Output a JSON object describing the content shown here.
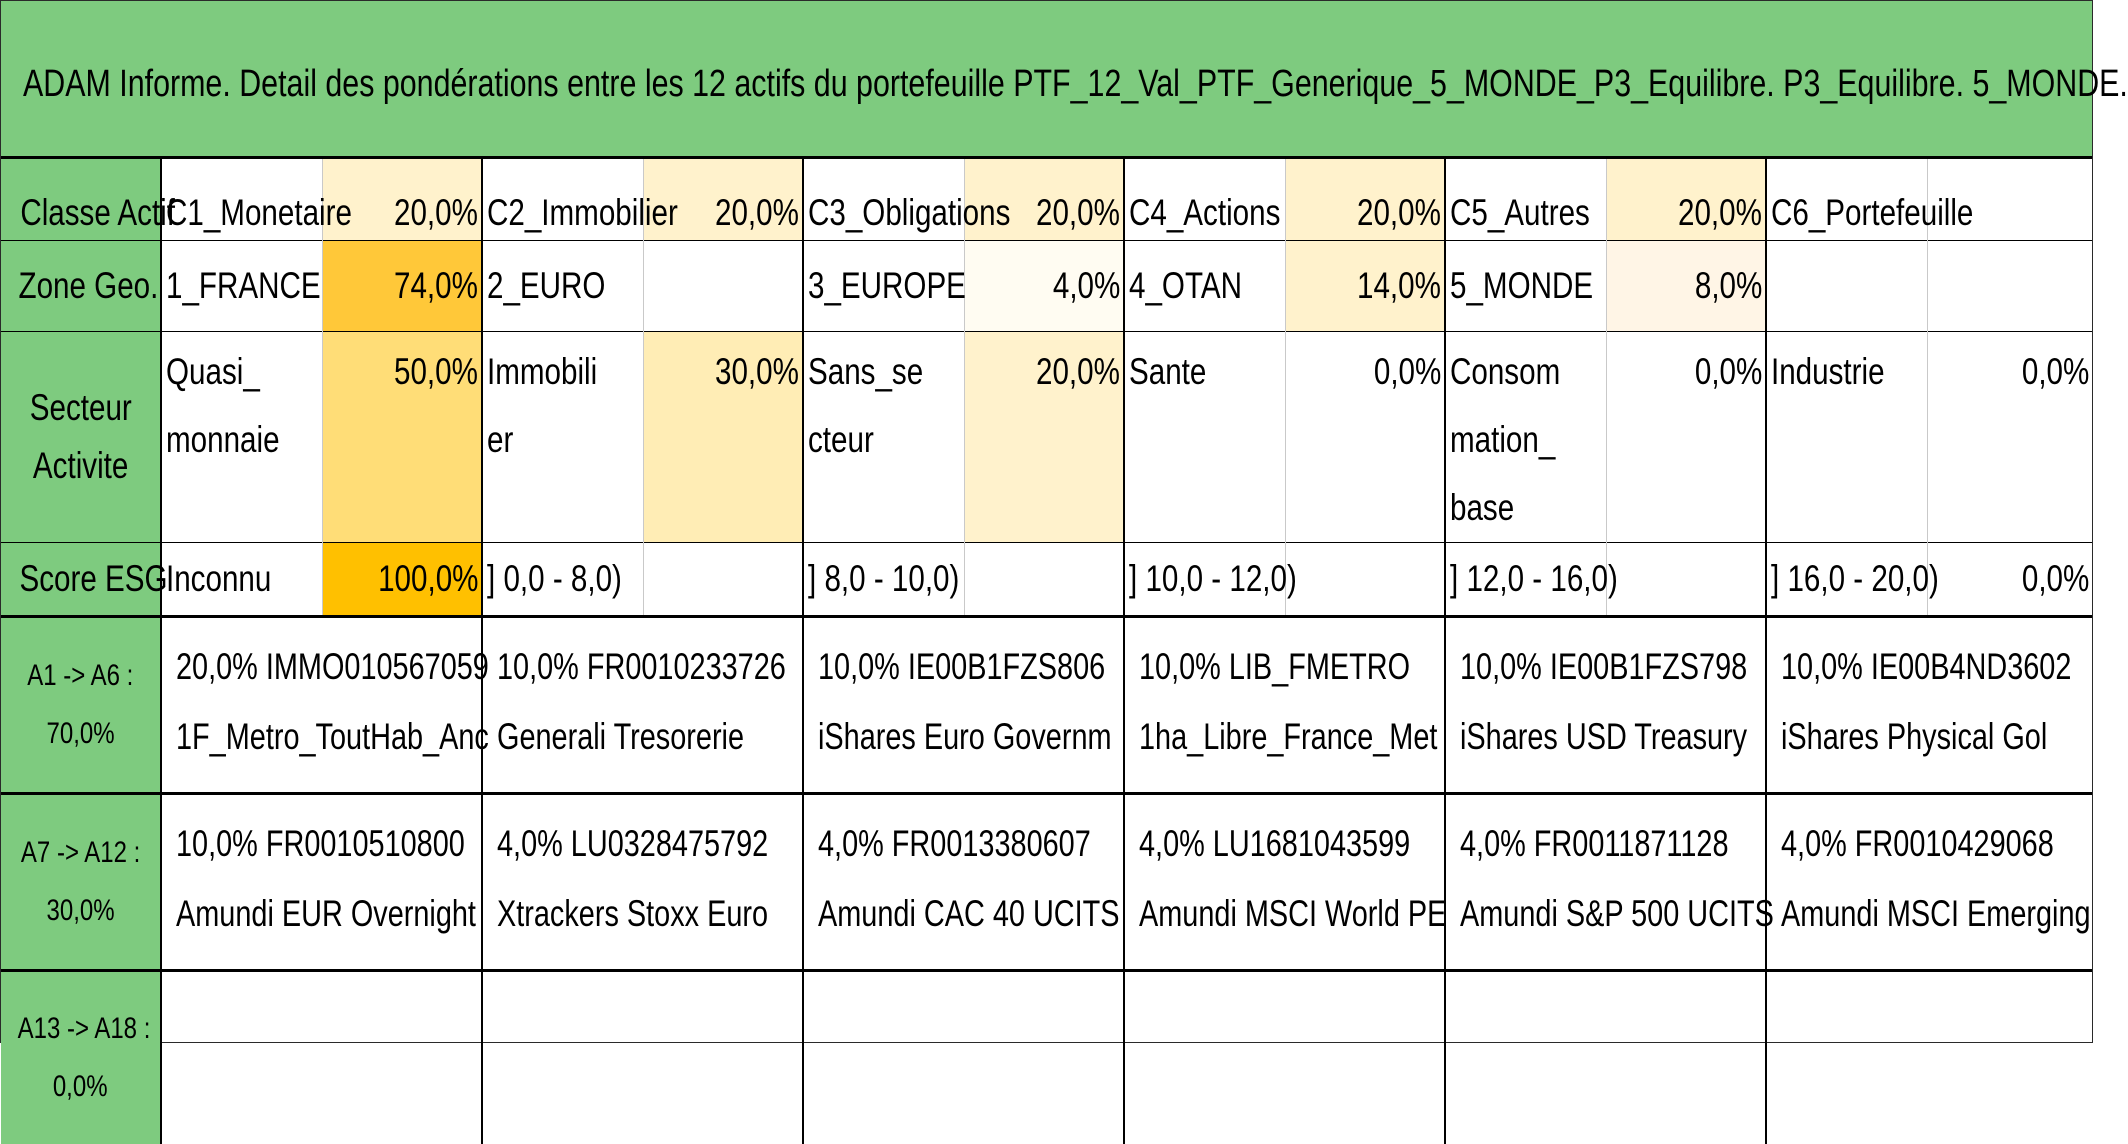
{
  "title": "ADAM Informe. Detail des pondérations entre les 12 actifs du portefeuille PTF_12_Val_PTF_Generique_5_MONDE_P3_Equilibre. P3_Equilibre. 5_MONDE.",
  "colors": {
    "header_green": "#7ecb7f",
    "heat_max": "#ffc000",
    "heat_high": "#ffd766",
    "heat_mid": "#ffeab0",
    "heat_low": "#fff2cc",
    "heat_min": "#fffaf0"
  },
  "rows": [
    {
      "label": "Classe Actif",
      "cells": [
        {
          "name": "C1_Monetaire",
          "value": "20,0%",
          "heat": "#fff2cc"
        },
        {
          "name": "C2_Immobilier",
          "value": "20,0%",
          "heat": "#fff2cc"
        },
        {
          "name": "C3_Obligations",
          "value": "20,0%",
          "heat": "#fff2cc"
        },
        {
          "name": "C4_Actions",
          "value": "20,0%",
          "heat": "#fff2cc"
        },
        {
          "name": "C5_Autres",
          "value": "20,0%",
          "heat": "#fff2cc"
        },
        {
          "name": "C6_Portefeuille",
          "value": "",
          "heat": "#ffffff"
        }
      ]
    },
    {
      "label": "Zone Geo.",
      "cells": [
        {
          "name": "1_FRANCE",
          "value": "74,0%",
          "heat": "#ffc839"
        },
        {
          "name": "2_EURO",
          "value": "",
          "heat": "#ffffff"
        },
        {
          "name": "3_EUROPE",
          "value": "4,0%",
          "heat": "#fffcf2"
        },
        {
          "name": "4_OTAN",
          "value": "14,0%",
          "heat": "#fff2cc"
        },
        {
          "name": "5_MONDE",
          "value": "8,0%",
          "heat": "#fff5e6"
        },
        {
          "name": "",
          "value": "",
          "heat": "#ffffff"
        }
      ]
    },
    {
      "label_lines": [
        "Secteur",
        "Activite"
      ],
      "cells": [
        {
          "name": "Quasi_monnaie",
          "value": "50,0%",
          "heat": "#ffdd77"
        },
        {
          "name": "Immobilier",
          "value": "30,0%",
          "heat": "#ffedb5"
        },
        {
          "name": "Sans_secteur",
          "value": "20,0%",
          "heat": "#fff2cc"
        },
        {
          "name": "Sante",
          "value": "0,0%",
          "heat": "#ffffff"
        },
        {
          "name": "Consommation_base",
          "value": "0,0%",
          "heat": "#ffffff"
        },
        {
          "name": "Industrie",
          "value": "0,0%",
          "heat": "#ffffff"
        }
      ]
    },
    {
      "label": "Score ESG",
      "cells": [
        {
          "name": "Inconnu",
          "value": "100,0%",
          "heat": "#ffc000"
        },
        {
          "name": "] 0,0 - 8,0)",
          "value": "",
          "heat": "#ffffff"
        },
        {
          "name": "] 8,0 - 10,0)",
          "value": "",
          "heat": "#ffffff"
        },
        {
          "name": "] 10,0 - 12,0)",
          "value": "",
          "heat": "#ffffff"
        },
        {
          "name": "] 12,0 - 16,0)",
          "value": "",
          "heat": "#ffffff"
        },
        {
          "name": "] 16,0 - 20,0)",
          "value": "0,0%",
          "heat": "#ffffff"
        }
      ]
    }
  ],
  "asset_rows": [
    {
      "label_lines": [
        "A1 -> A6 :",
        "70,0%"
      ],
      "assets": [
        {
          "line1": "20,0% IMMO010567059",
          "line2": "1F_Metro_ToutHab_Anc"
        },
        {
          "line1": "10,0% FR0010233726",
          "line2": "Generali Tresorerie"
        },
        {
          "line1": "10,0% IE00B1FZS806",
          "line2": "iShares Euro Governm"
        },
        {
          "line1": "10,0% LIB_FMETRO",
          "line2": "1ha_Libre_France_Met"
        },
        {
          "line1": "10,0% IE00B1FZS798",
          "line2": "iShares USD Treasury"
        },
        {
          "line1": "10,0% IE00B4ND3602",
          "line2": "iShares Physical Gol"
        }
      ]
    },
    {
      "label_lines": [
        "A7 -> A12 :",
        "30,0%"
      ],
      "assets": [
        {
          "line1": "10,0% FR0010510800",
          "line2": "Amundi EUR Overnight"
        },
        {
          "line1": "4,0% LU0328475792",
          "line2": "Xtrackers Stoxx Euro"
        },
        {
          "line1": "4,0% FR0013380607",
          "line2": "Amundi CAC 40 UCITS"
        },
        {
          "line1": "4,0% LU1681043599",
          "line2": "Amundi MSCI World PE"
        },
        {
          "line1": "4,0% FR0011871128",
          "line2": "Amundi S&P 500 UCITS"
        },
        {
          "line1": "4,0% FR0010429068",
          "line2": "Amundi MSCI Emerging"
        }
      ]
    },
    {
      "label_lines": [
        "A13 -> A18 :",
        "0,0%"
      ],
      "assets": [
        {
          "line1": "",
          "line2": ""
        },
        {
          "line1": "",
          "line2": ""
        },
        {
          "line1": "",
          "line2": ""
        },
        {
          "line1": "",
          "line2": ""
        },
        {
          "line1": "",
          "line2": ""
        },
        {
          "line1": "",
          "line2": ""
        }
      ]
    }
  ]
}
